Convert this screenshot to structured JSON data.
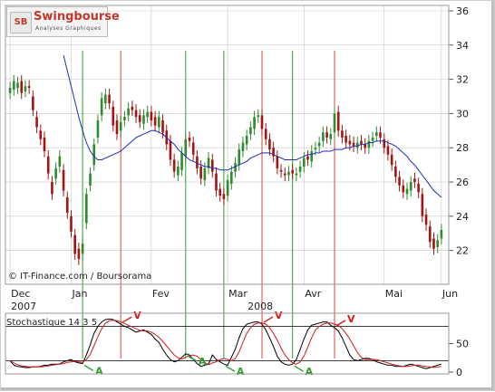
{
  "brand": {
    "mark": "SB",
    "name": "Swingbourse",
    "tagline": "Analyses Graphiques"
  },
  "source": "© IT-Finance.com / Boursorama",
  "stochastic_label": "Stochastique 14 3 5",
  "colors": {
    "candle_up": "#2e8b2e",
    "candle_down": "#a31515",
    "moving_average": "#1f2fb4",
    "stoch_k": "#000000",
    "stoch_d": "#d11a1a",
    "buy_line": "#2e9e2e",
    "sell_line": "#d24a4a",
    "grid": "#c8c8c8"
  },
  "chart_data": [
    {
      "type": "candlestick",
      "ylim": [
        20.5,
        36
      ],
      "yticks": [
        22,
        24,
        26,
        28,
        30,
        32,
        34,
        36
      ],
      "grid": true,
      "month_ticks": [
        {
          "label": "Dec",
          "bar": 0
        },
        {
          "label": "Jan",
          "bar": 16
        },
        {
          "label": "Fev",
          "bar": 37
        },
        {
          "label": "Mar",
          "bar": 57
        },
        {
          "label": "Avr",
          "bar": 77
        },
        {
          "label": "Mai",
          "bar": 98
        },
        {
          "label": "Jun",
          "bar": 113
        }
      ],
      "year_labels": [
        {
          "label": "2007",
          "bar": 0
        },
        {
          "label": "2008",
          "bar": 62
        }
      ],
      "close": [
        31.5,
        31.9,
        31.8,
        31.2,
        31.6,
        31.5,
        30.2,
        29.2,
        28.5,
        27.8,
        26.5,
        25.3,
        26.8,
        27.5,
        25.5,
        24.2,
        23.1,
        21.8,
        21.5,
        22.4,
        25.3,
        26.5,
        28.2,
        29.6,
        30.9,
        31.1,
        30.6,
        29.3,
        28.8,
        29.5,
        29.8,
        30.3,
        30.2,
        29.8,
        29.5,
        29.9,
        30.1,
        29.6,
        29.3,
        29.8,
        28.9,
        28.2,
        27.3,
        26.6,
        26.9,
        27.7,
        28.5,
        28.4,
        27.6,
        26.8,
        26.2,
        26.8,
        27.4,
        26.6,
        25.5,
        25.2,
        25.0,
        26.1,
        26.6,
        27.1,
        27.9,
        28.3,
        28.7,
        29.2,
        29.8,
        29.9,
        29.1,
        28.5,
        27.9,
        27.5,
        26.8,
        26.6,
        26.4,
        26.6,
        26.5,
        26.5,
        26.9,
        27.4,
        27.3,
        27.8,
        28.0,
        28.3,
        28.9,
        28.6,
        28.8,
        30.0,
        29.0,
        28.6,
        28.3,
        28.2,
        28.1,
        28.3,
        28.2,
        28.0,
        28.4,
        28.6,
        28.9,
        28.6,
        28.0,
        27.6,
        27.0,
        26.3,
        25.8,
        25.4,
        25.6,
        26.0,
        26.0,
        25.4,
        24.0,
        23.5,
        22.5,
        22.1,
        22.6,
        23.2
      ],
      "open": [
        31.2,
        31.4,
        31.5,
        31.9,
        31.3,
        31.6,
        31.0,
        29.8,
        29.0,
        28.6,
        27.5,
        26.0,
        26.2,
        26.9,
        26.7,
        25.1,
        24.0,
        22.9,
        22.1,
        21.8,
        23.6,
        25.8,
        27.0,
        28.6,
        29.9,
        30.6,
        31.1,
        30.4,
        29.6,
        29.0,
        29.6,
        29.9,
        30.4,
        30.2,
        29.9,
        29.4,
        29.8,
        30.1,
        29.8,
        29.2,
        29.6,
        29.0,
        28.4,
        27.3,
        26.4,
        26.7,
        27.5,
        28.6,
        28.3,
        27.5,
        26.9,
        26.1,
        26.8,
        27.3,
        26.5,
        25.6,
        25.3,
        25.2,
        25.9,
        26.6,
        27.0,
        27.8,
        28.2,
        28.8,
        29.1,
        29.8,
        29.9,
        29.1,
        28.5,
        28.0,
        27.5,
        26.7,
        26.5,
        26.4,
        26.7,
        26.4,
        26.6,
        26.9,
        27.5,
        27.2,
        27.9,
        28.1,
        28.4,
        28.9,
        28.5,
        28.9,
        30.1,
        29.0,
        28.7,
        28.4,
        28.3,
        28.0,
        28.4,
        28.2,
        28.0,
        28.4,
        28.7,
        28.9,
        28.5,
        28.1,
        27.6,
        26.9,
        26.3,
        25.8,
        25.3,
        25.5,
        26.2,
        25.9,
        25.3,
        24.1,
        23.4,
        22.7,
        22.2,
        22.7
      ]
    },
    {
      "type": "line",
      "series": [
        {
          "values": [
            null,
            null,
            null,
            null,
            null,
            null,
            null,
            null,
            null,
            null,
            null,
            null,
            null,
            null,
            33.4,
            32.5,
            31.6,
            30.7,
            29.8,
            29.0,
            28.3,
            27.8,
            27.5,
            27.3,
            27.3,
            27.4,
            27.5,
            27.6,
            27.7,
            27.8,
            28.0,
            28.2,
            28.4,
            28.6,
            28.7,
            28.8,
            28.9,
            29.0,
            29.0,
            28.9,
            28.8,
            28.6,
            28.4,
            28.2,
            27.9,
            27.7,
            27.5,
            27.3,
            27.2,
            27.1,
            27.0,
            26.9,
            26.9,
            26.8,
            26.8,
            26.7,
            26.7,
            26.7,
            26.8,
            26.9,
            27.0,
            27.1,
            27.2,
            27.4,
            27.5,
            27.6,
            27.7,
            27.7,
            27.7,
            27.6,
            27.5,
            27.4,
            27.3,
            27.3,
            27.3,
            27.3,
            27.4,
            27.5,
            27.6,
            27.6,
            27.7,
            27.7,
            27.8,
            27.8,
            27.8,
            27.9,
            27.9,
            27.9,
            28.0,
            28.0,
            28.1,
            28.1,
            28.2,
            28.2,
            28.3,
            28.3,
            28.4,
            28.4,
            28.4,
            28.3,
            28.2,
            28.1,
            27.9,
            27.7,
            27.5,
            27.2,
            27.0,
            26.7,
            26.4,
            26.1,
            25.8,
            25.5,
            25.3,
            25.1
          ]
        }
      ]
    },
    {
      "type": "line",
      "title": "Stochastique 14 3 5",
      "ylim": [
        0,
        100
      ],
      "yticks": [
        0,
        50
      ],
      "reference_lines": [
        20,
        80
      ],
      "series": [
        {
          "values": [
            20,
            12,
            10,
            9,
            8,
            8,
            9,
            9,
            10,
            12,
            12,
            14,
            14,
            14,
            18,
            20,
            22,
            18,
            16,
            15,
            30,
            48,
            68,
            80,
            88,
            92,
            93,
            92,
            88,
            84,
            80,
            78,
            74,
            70,
            72,
            74,
            70,
            66,
            58,
            52,
            40,
            30,
            22,
            18,
            20,
            26,
            32,
            30,
            22,
            15,
            10,
            12,
            14,
            30,
            22,
            18,
            14,
            12,
            26,
            40,
            60,
            76,
            84,
            86,
            88,
            88,
            84,
            74,
            60,
            45,
            28,
            18,
            14,
            12,
            14,
            22,
            40,
            58,
            74,
            82,
            84,
            86,
            88,
            88,
            82,
            78,
            72,
            60,
            45,
            30,
            22,
            20,
            22,
            24,
            24,
            22,
            18,
            16,
            14,
            12,
            12,
            10,
            10,
            10,
            12,
            14,
            12,
            10,
            8,
            6,
            8,
            10,
            12,
            14
          ]
        },
        {
          "values": [
            20,
            16,
            13,
            11,
            10,
            9,
            9,
            9,
            9,
            10,
            11,
            12,
            13,
            14,
            15,
            17,
            18,
            19,
            18,
            17,
            22,
            31,
            46,
            62,
            76,
            86,
            90,
            91,
            90,
            88,
            85,
            82,
            79,
            76,
            73,
            72,
            72,
            70,
            66,
            61,
            54,
            46,
            38,
            30,
            25,
            23,
            26,
            29,
            30,
            28,
            22,
            17,
            13,
            16,
            18,
            22,
            24,
            22,
            20,
            24,
            35,
            52,
            68,
            78,
            84,
            86,
            86,
            84,
            78,
            68,
            56,
            42,
            30,
            22,
            16,
            14,
            18,
            28,
            44,
            60,
            74,
            80,
            84,
            86,
            86,
            84,
            82,
            76,
            68,
            58,
            46,
            34,
            26,
            22,
            22,
            22,
            22,
            20,
            18,
            16,
            14,
            12,
            11,
            10,
            10,
            11,
            12,
            12,
            11,
            10,
            9,
            8,
            9,
            10
          ]
        }
      ]
    }
  ],
  "signals": [
    {
      "label": "A",
      "kind": "buy",
      "bar": 19
    },
    {
      "label": "V",
      "kind": "sell",
      "bar": 29
    },
    {
      "label": "A",
      "kind": "buy",
      "bar": 46
    },
    {
      "label": "A",
      "kind": "buy",
      "bar": 56
    },
    {
      "label": "V",
      "kind": "sell",
      "bar": 66
    },
    {
      "label": "A",
      "kind": "buy",
      "bar": 74
    },
    {
      "label": "V",
      "kind": "sell",
      "bar": 85
    }
  ]
}
